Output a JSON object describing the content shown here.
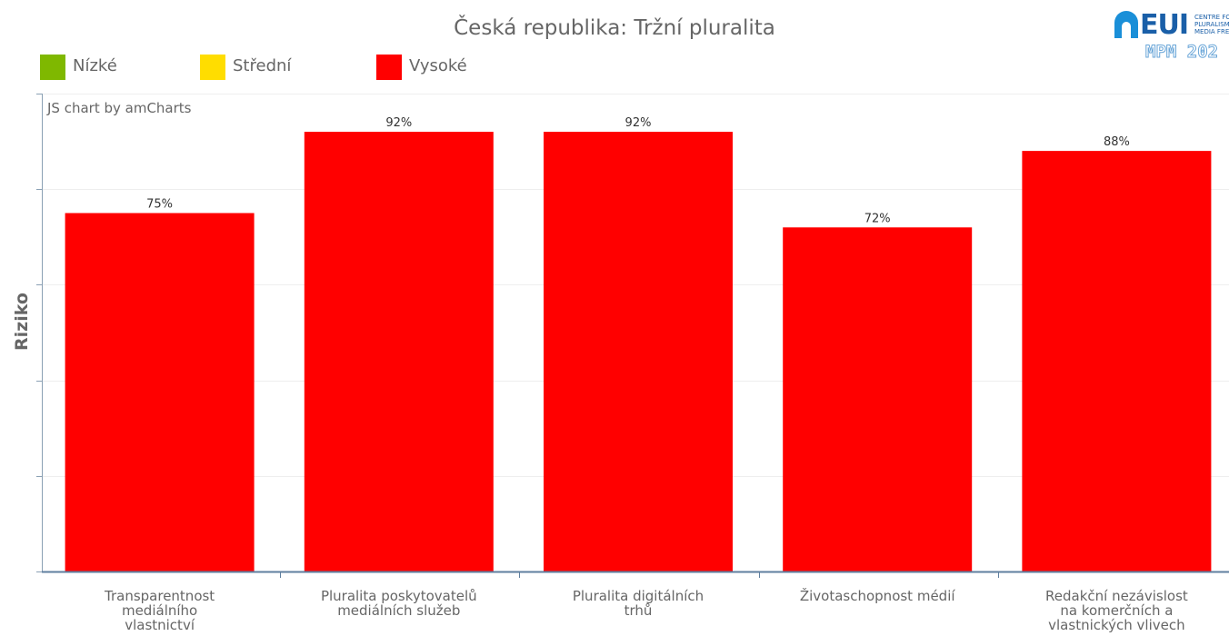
{
  "chart_data": {
    "type": "bar",
    "title": "Česká republika: Tržní pluralita",
    "ylabel": "Riziko",
    "xlabel": "",
    "credit": "JS chart by amCharts",
    "ylim": [
      0,
      100
    ],
    "grid": true,
    "legend_position": "top-left",
    "legend": [
      {
        "label": "Nízké",
        "color": "#7fb800"
      },
      {
        "label": "Střední",
        "color": "#ffdd00"
      },
      {
        "label": "Vysoké",
        "color": "#ff0000"
      }
    ],
    "categories": [
      "Transparentnost mediálního vlastnictví",
      "Pluralita poskytovatelů mediálních služeb",
      "Pluralita digitálních trhů",
      "Životaschopnost médií",
      "Redakční nezávislost na komerčních a vlastnických vlivech"
    ],
    "category_lines": [
      [
        "Transparentnost",
        "mediálního",
        "vlastnictví"
      ],
      [
        "Pluralita poskytovatelů",
        "mediálních služeb"
      ],
      [
        "Pluralita digitálních",
        "trhů"
      ],
      [
        "Životaschopnost médií"
      ],
      [
        "Redakční nezávislost",
        "na komerčních a",
        "vlastnických vlivech"
      ]
    ],
    "values": [
      75,
      92,
      92,
      72,
      88
    ],
    "value_labels": [
      "75%",
      "92%",
      "92%",
      "72%",
      "88%"
    ],
    "bar_color": "#ff0000"
  },
  "logo": {
    "name": "EUI",
    "subtitle_lines": [
      "CENTRE FOR MEDIA",
      "PLURALISM AND",
      "MEDIA FREEDOM"
    ],
    "mpm": "MPM 202"
  }
}
